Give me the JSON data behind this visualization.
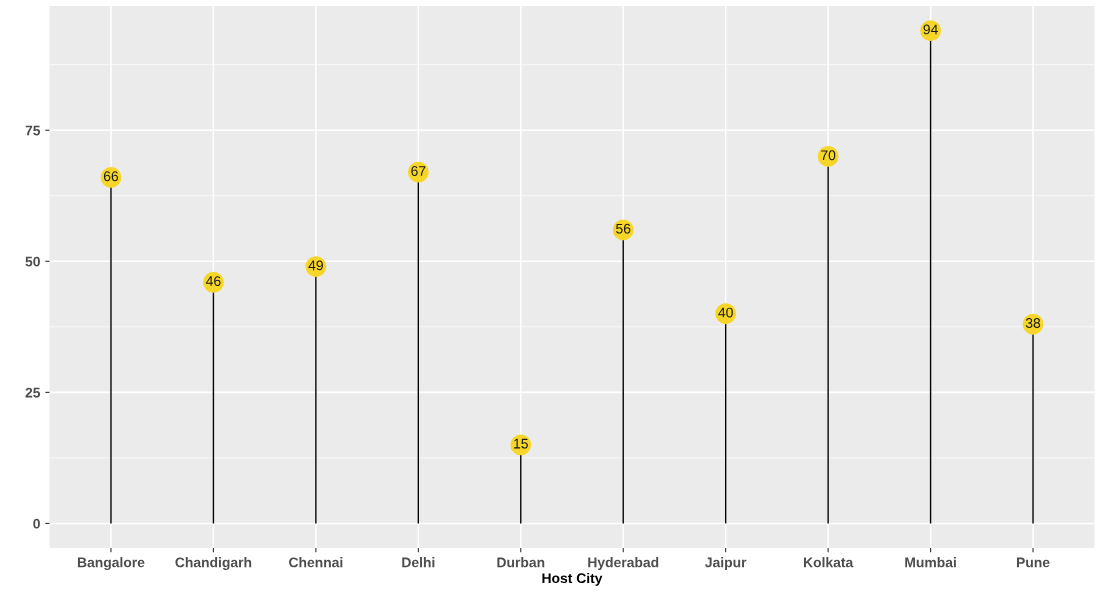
{
  "chart_data": {
    "type": "lollipop",
    "xlabel": "Host City",
    "categories": [
      "Bangalore",
      "Chandigarh",
      "Chennai",
      "Delhi",
      "Durban",
      "Hyderabad",
      "Jaipur",
      "Kolkata",
      "Mumbai",
      "Pune"
    ],
    "values": [
      66,
      46,
      49,
      67,
      15,
      56,
      40,
      70,
      94,
      38
    ],
    "color": "#f7d62a",
    "ylim": [
      -4.7,
      98.7
    ],
    "yticks": [
      0,
      25,
      50,
      75
    ],
    "grid": true,
    "marker": "circle",
    "data_labels": true
  }
}
